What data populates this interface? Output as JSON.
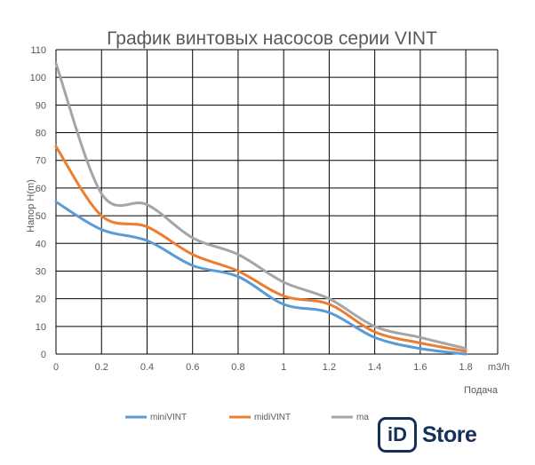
{
  "chart_data": {
    "type": "line",
    "title": "График винтовых насосов серии VINT",
    "xlabel": "Подача",
    "x_unit": "m3/h",
    "ylabel": "Напор H(m)",
    "x": [
      0,
      0.2,
      0.4,
      0.6,
      0.8,
      1,
      1.2,
      1.4,
      1.6,
      1.8
    ],
    "x_ticks": [
      "0",
      "0.2",
      "0.4",
      "0.6",
      "0.8",
      "1",
      "1.2",
      "1.4",
      "1.6",
      "1.8"
    ],
    "xlim": [
      0,
      1.94
    ],
    "ylim": [
      0,
      110
    ],
    "y_ticks": [
      0,
      10,
      20,
      30,
      40,
      50,
      60,
      70,
      80,
      90,
      100,
      110
    ],
    "grid": true,
    "legend_position": "bottom",
    "series": [
      {
        "name": "miniVINT",
        "color": "#5b9bd5",
        "values": [
          55,
          45,
          41,
          32,
          28,
          18,
          15,
          6,
          2,
          0
        ]
      },
      {
        "name": "midiVINT",
        "color": "#ed7d31",
        "values": [
          75,
          50,
          46,
          36,
          30,
          21,
          18,
          8,
          4,
          1
        ]
      },
      {
        "name": "maxiVINT",
        "legend_label": "ma",
        "color": "#a5a5a5",
        "values": [
          105,
          58,
          54,
          42,
          36,
          26,
          20,
          10,
          6,
          2
        ]
      }
    ]
  },
  "logo": {
    "box_text": "iD",
    "word": "Store"
  }
}
